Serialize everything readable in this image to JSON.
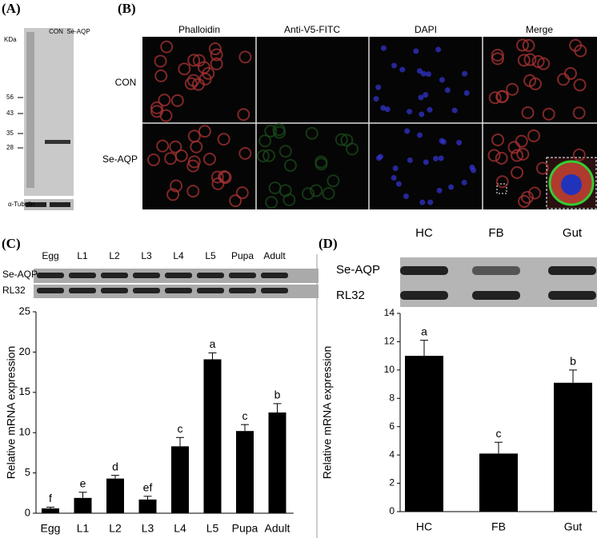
{
  "panels": {
    "a": "(A)",
    "b": "(B)",
    "c": "(C)",
    "d": "(D)"
  },
  "blot_a": {
    "lanes": [
      "CON",
      "Se-AQP"
    ],
    "unit": "KDa",
    "markers": [
      "56",
      "43",
      "35",
      "28"
    ],
    "loading": "α-Tubulin"
  },
  "microscopy": {
    "columns": [
      "Phalloidin",
      "Anti-V5-FITC",
      "DAPI",
      "Merge"
    ],
    "rows": [
      "CON",
      "Se-AQP"
    ]
  },
  "blot_c": {
    "lanes": [
      "Egg",
      "L1",
      "L2",
      "L3",
      "L4",
      "L5",
      "Pupa",
      "Adult"
    ],
    "rows": [
      "Se-AQP",
      "RL32"
    ]
  },
  "blot_d": {
    "lanes": [
      "HC",
      "FB",
      "Gut"
    ],
    "rows": [
      "Se-AQP",
      "RL32"
    ]
  },
  "chart_data": [
    {
      "type": "bar",
      "ylabel": "Relative mRNA expression",
      "color": "#000000",
      "categories": [
        "Egg",
        "L1",
        "L2",
        "L3",
        "L4",
        "L5",
        "Pupa",
        "Adult"
      ],
      "values": [
        0.6,
        1.9,
        4.3,
        1.7,
        8.3,
        19.1,
        10.2,
        12.5
      ],
      "errors": [
        0.15,
        0.7,
        0.4,
        0.4,
        1.1,
        0.8,
        0.8,
        1.1
      ],
      "letters": [
        "f",
        "e",
        "d",
        "ef",
        "c",
        "a",
        "c",
        "b"
      ],
      "ylim": [
        0,
        25
      ],
      "yticks": [
        0,
        5,
        10,
        15,
        20,
        25
      ]
    },
    {
      "type": "bar",
      "ylabel": "Relative mRNA expression",
      "color": "#000000",
      "categories": [
        "HC",
        "FB",
        "Gut"
      ],
      "values": [
        11.0,
        4.1,
        9.1
      ],
      "errors": [
        1.1,
        0.8,
        0.9
      ],
      "letters": [
        "a",
        "c",
        "b"
      ],
      "ylim": [
        0,
        14
      ],
      "yticks": [
        0,
        2,
        4,
        6,
        8,
        10,
        12,
        14
      ]
    }
  ]
}
